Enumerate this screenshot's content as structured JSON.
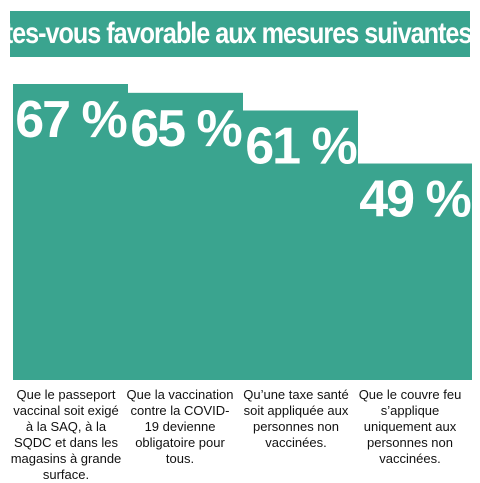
{
  "title": "Êtes-vous favorable aux mesures suivantes ?",
  "colors": {
    "bar": "#3aa48f",
    "title_bg": "#3aa48f",
    "text_on_bar": "#ffffff"
  },
  "chart_data": {
    "type": "bar",
    "title": "Êtes-vous favorable aux mesures suivantes ?",
    "value_suffix": " %",
    "ylim": [
      0,
      100
    ],
    "grid": false,
    "categories": [
      "Que le passeport vaccinal soit exigé à la SAQ, à la SQDC et dans les magasins à grande surface.",
      "Que la vaccination contre la COVID-19 devienne obligatoire pour tous.",
      "Qu’une taxe santé soit appliquée aux personnes non vaccinées.",
      "Que le couvre feu s’applique uniquement aux personnes non vaccinées."
    ],
    "values": [
      67,
      65,
      61,
      49
    ]
  }
}
